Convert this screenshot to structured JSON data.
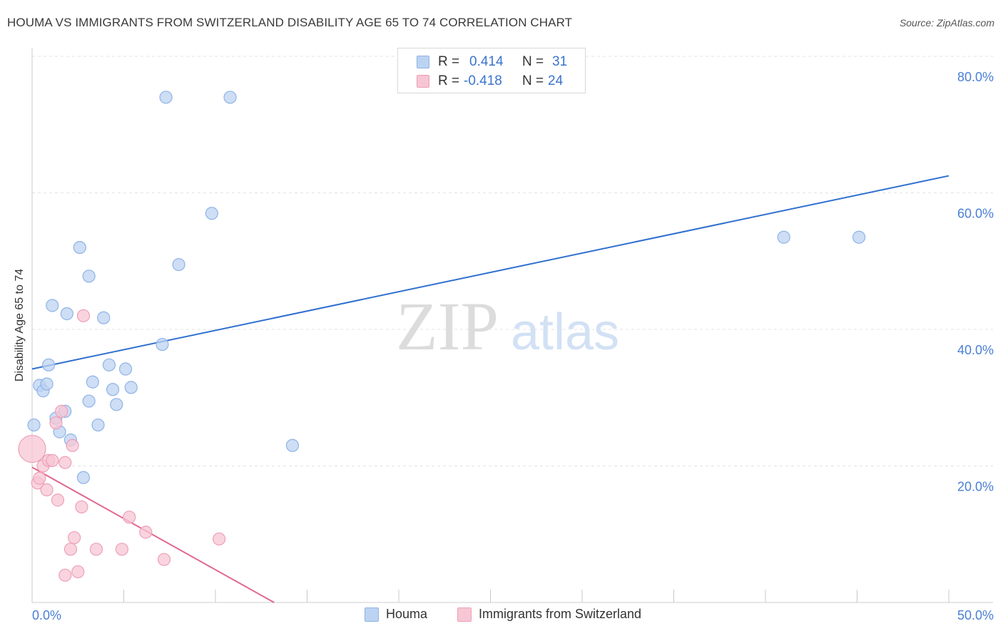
{
  "header": {
    "title": "HOUMA VS IMMIGRANTS FROM SWITZERLAND DISABILITY AGE 65 TO 74 CORRELATION CHART",
    "source": "Source: ZipAtlas.com"
  },
  "watermark": {
    "zip": "ZIP",
    "atlas": "atlas"
  },
  "legend": {
    "r_label": "R =",
    "n_label": "N =",
    "rows": [
      {
        "r": "0.414",
        "n": "31",
        "color": "#a8c8f0"
      },
      {
        "r": "-0.418",
        "n": "24",
        "color": "#f5b8cb"
      }
    ]
  },
  "colors": {
    "houma_fill": "#bcd3f2",
    "houma_stroke": "#8fb3e6",
    "houma_line": "#2f6fcf",
    "swiss_fill": "#f7c6d4",
    "swiss_stroke": "#ee9fb8",
    "swiss_line": "#e0678f",
    "grid": "#e3e3e3",
    "tick_text": "#4a7fd4"
  },
  "chart_data": {
    "type": "scatter",
    "title": "HOUMA VS IMMIGRANTS FROM SWITZERLAND DISABILITY AGE 65 TO 74 CORRELATION CHART",
    "xlabel": "",
    "ylabel": "Disability Age 65 to 74",
    "xlim": [
      0,
      50
    ],
    "ylim": [
      0,
      80
    ],
    "x_tick_labels": [
      "0.0%",
      "50.0%"
    ],
    "y_ticks": [
      20,
      40,
      60,
      80
    ],
    "y_tick_labels": [
      "20.0%",
      "40.0%",
      "60.0%",
      "80.0%"
    ],
    "grid": true,
    "legend_position": "top-center",
    "series": [
      {
        "name": "Houma",
        "points": [
          [
            0.1,
            26.0
          ],
          [
            0.4,
            31.8
          ],
          [
            0.6,
            31.0
          ],
          [
            0.8,
            32.0
          ],
          [
            0.9,
            34.8
          ],
          [
            1.1,
            43.5
          ],
          [
            1.3,
            27.0
          ],
          [
            1.5,
            25.0
          ],
          [
            1.8,
            28.0
          ],
          [
            1.9,
            42.3
          ],
          [
            2.1,
            23.8
          ],
          [
            2.6,
            52.0
          ],
          [
            2.8,
            18.3
          ],
          [
            3.1,
            29.5
          ],
          [
            3.1,
            47.8
          ],
          [
            3.3,
            32.3
          ],
          [
            3.6,
            26.0
          ],
          [
            3.9,
            41.7
          ],
          [
            4.2,
            34.8
          ],
          [
            4.4,
            31.2
          ],
          [
            4.6,
            29.0
          ],
          [
            5.1,
            34.2
          ],
          [
            5.4,
            31.5
          ],
          [
            7.1,
            37.8
          ],
          [
            7.3,
            74.0
          ],
          [
            8.0,
            49.5
          ],
          [
            9.8,
            57.0
          ],
          [
            10.8,
            74.0
          ],
          [
            14.2,
            23.0
          ],
          [
            41.0,
            53.5
          ],
          [
            45.1,
            53.5
          ]
        ],
        "trend": {
          "x": [
            0,
            50
          ],
          "y": [
            34.2,
            62.5
          ]
        }
      },
      {
        "name": "Immigrants from Switzerland",
        "points": [
          [
            0.0,
            22.5
          ],
          [
            0.3,
            17.5
          ],
          [
            0.4,
            18.2
          ],
          [
            0.6,
            20.0
          ],
          [
            0.8,
            16.5
          ],
          [
            0.9,
            20.8
          ],
          [
            1.1,
            20.8
          ],
          [
            1.3,
            26.3
          ],
          [
            1.4,
            15.0
          ],
          [
            1.6,
            28.0
          ],
          [
            1.8,
            20.5
          ],
          [
            1.8,
            4.0
          ],
          [
            2.1,
            7.8
          ],
          [
            2.2,
            23.0
          ],
          [
            2.3,
            9.5
          ],
          [
            2.5,
            4.5
          ],
          [
            2.7,
            14.0
          ],
          [
            2.8,
            42.0
          ],
          [
            3.5,
            7.8
          ],
          [
            4.9,
            7.8
          ],
          [
            5.3,
            12.5
          ],
          [
            6.2,
            10.3
          ],
          [
            7.2,
            6.3
          ],
          [
            10.2,
            9.3
          ]
        ],
        "trend": {
          "x": [
            0,
            13.2
          ],
          "y": [
            19.8,
            0
          ]
        }
      }
    ]
  },
  "bottom_legend": {
    "items": [
      {
        "label": "Houma"
      },
      {
        "label": "Immigrants from Switzerland"
      }
    ]
  }
}
